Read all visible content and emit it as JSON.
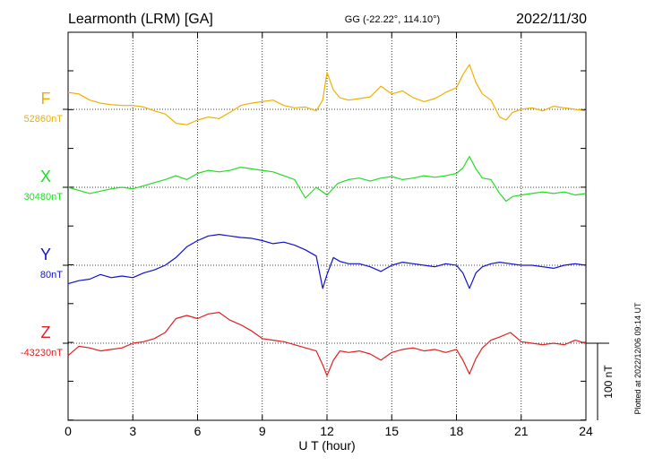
{
  "header": {
    "station": "Learmonth (LRM)  [GA]",
    "coords": "GG (-22.22°, 114.10°)",
    "date": "2022/11/30"
  },
  "footer": {
    "plotted": "Plotted at 2022/12/06 09:14 UT"
  },
  "chart_data": {
    "type": "line",
    "xlabel": "U T (hour)",
    "xlim": [
      0,
      24
    ],
    "xticks": [
      "0",
      "3",
      "6",
      "9",
      "12",
      "15",
      "18",
      "21",
      "24"
    ],
    "grid": true,
    "scale_bar": {
      "label": "100 nT",
      "nT": 100
    },
    "series": [
      {
        "name": "F",
        "baseline_label": "52860nT",
        "color": "#f0b000",
        "x": [
          0,
          0.5,
          1,
          1.5,
          2,
          2.5,
          3,
          3.5,
          4,
          4.5,
          5,
          5.5,
          6,
          6.5,
          7,
          7.5,
          8,
          8.5,
          9,
          9.5,
          10,
          10.5,
          11,
          11.5,
          11.8,
          12,
          12.3,
          12.6,
          13,
          13.5,
          14,
          14.5,
          15,
          15.5,
          16,
          16.5,
          17,
          17.5,
          18,
          18.3,
          18.6,
          18.9,
          19.2,
          19.6,
          20,
          20.3,
          20.6,
          21,
          21.5,
          22,
          22.5,
          23,
          23.5,
          24
        ],
        "values": [
          22,
          20,
          12,
          8,
          6,
          5,
          5,
          3,
          -2,
          -6,
          -18,
          -20,
          -14,
          -10,
          -12,
          -4,
          5,
          8,
          10,
          12,
          5,
          2,
          3,
          -2,
          12,
          48,
          25,
          15,
          12,
          14,
          16,
          30,
          20,
          24,
          15,
          10,
          14,
          22,
          28,
          45,
          58,
          35,
          20,
          12,
          -10,
          -14,
          -4,
          0,
          2,
          -2,
          4,
          2,
          0,
          -2
        ]
      },
      {
        "name": "X",
        "baseline_label": "30480nT",
        "color": "#22dd22",
        "x": [
          0,
          0.5,
          1,
          1.5,
          2,
          2.5,
          3,
          3.5,
          4,
          4.5,
          5,
          5.5,
          6,
          6.5,
          7,
          7.5,
          8,
          8.5,
          9,
          9.5,
          10,
          10.5,
          11,
          11.5,
          12,
          12.5,
          13,
          13.5,
          14,
          14.5,
          15,
          15.5,
          16,
          16.5,
          17,
          17.5,
          18,
          18.3,
          18.6,
          18.9,
          19.2,
          19.6,
          20,
          20.3,
          20.6,
          21,
          21.5,
          22,
          22.5,
          23,
          23.5,
          24
        ],
        "values": [
          0,
          -4,
          -8,
          -5,
          -2,
          0,
          -2,
          2,
          6,
          10,
          15,
          10,
          18,
          22,
          20,
          22,
          26,
          24,
          22,
          20,
          15,
          10,
          -14,
          0,
          -10,
          5,
          10,
          12,
          8,
          12,
          14,
          10,
          12,
          15,
          13,
          15,
          18,
          25,
          40,
          24,
          12,
          10,
          -8,
          -18,
          -12,
          -10,
          -8,
          -6,
          -8,
          -6,
          -10,
          -8
        ]
      },
      {
        "name": "Y",
        "baseline_label": "80nT",
        "color": "#1010d0",
        "x": [
          0,
          0.5,
          1,
          1.5,
          2,
          2.5,
          3,
          3.5,
          4,
          4.5,
          5,
          5.5,
          6,
          6.5,
          7,
          7.5,
          8,
          8.5,
          9,
          9.5,
          10,
          10.5,
          11,
          11.5,
          11.8,
          12,
          12.3,
          12.6,
          13,
          13.5,
          14,
          14.5,
          15,
          15.5,
          16,
          16.5,
          17,
          17.5,
          18,
          18.3,
          18.6,
          18.9,
          19.2,
          19.6,
          20,
          20.5,
          21,
          21.5,
          22,
          22.5,
          23,
          23.5,
          24
        ],
        "values": [
          -24,
          -20,
          -18,
          -12,
          -16,
          -14,
          -16,
          -10,
          -6,
          0,
          10,
          24,
          32,
          38,
          40,
          38,
          36,
          35,
          32,
          28,
          30,
          26,
          20,
          12,
          -30,
          -12,
          10,
          5,
          2,
          2,
          -2,
          -8,
          0,
          4,
          2,
          0,
          -2,
          2,
          0,
          -10,
          -30,
          -10,
          -2,
          2,
          4,
          2,
          0,
          0,
          -2,
          -4,
          0,
          2,
          0
        ]
      },
      {
        "name": "Z",
        "baseline_label": "-43230nT",
        "color": "#e02020",
        "x": [
          0,
          0.5,
          1,
          1.5,
          2,
          2.5,
          3,
          3.5,
          4,
          4.5,
          5,
          5.5,
          6,
          6.5,
          7,
          7.5,
          8,
          8.5,
          9,
          9.5,
          10,
          10.5,
          11,
          11.5,
          11.8,
          12,
          12.3,
          12.6,
          13,
          13.5,
          14,
          14.5,
          15,
          15.5,
          16,
          16.5,
          17,
          17.5,
          18,
          18.3,
          18.6,
          18.9,
          19.2,
          19.6,
          20,
          20.5,
          21,
          21.5,
          22,
          22.5,
          23,
          23.5,
          24
        ],
        "values": [
          -16,
          -4,
          -6,
          -10,
          -8,
          -6,
          0,
          2,
          6,
          14,
          32,
          36,
          32,
          38,
          40,
          30,
          24,
          16,
          6,
          4,
          2,
          -2,
          -6,
          -10,
          -28,
          -42,
          -22,
          -10,
          -12,
          -10,
          -14,
          -22,
          -12,
          -8,
          -6,
          -10,
          -8,
          -12,
          -8,
          -22,
          -40,
          -20,
          -6,
          4,
          8,
          14,
          2,
          0,
          -2,
          0,
          -2,
          4,
          0
        ]
      }
    ]
  }
}
